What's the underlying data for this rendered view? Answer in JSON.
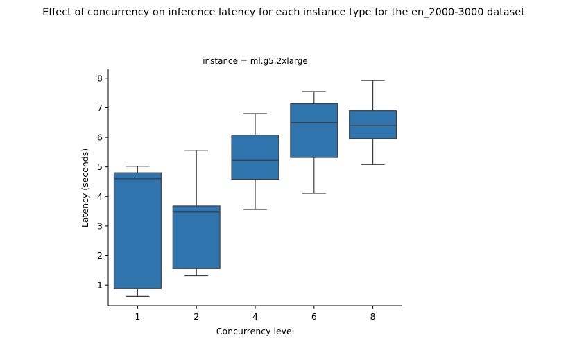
{
  "chart_data": {
    "type": "box",
    "title": "Effect of concurrency on inference latency for each instance type for the en_2000-3000 dataset",
    "subtitle": "instance = ml.g5.2xlarge",
    "xlabel": "Concurrency level",
    "ylabel": "Latency (seconds)",
    "ylim": [
      0.3,
      8.3
    ],
    "yticks": [
      1,
      2,
      3,
      4,
      5,
      6,
      7,
      8
    ],
    "grid": false,
    "legend": "none",
    "colors": {
      "box_fill": "#2f74ad",
      "line": "#3d3d3d",
      "axis": "#000000"
    },
    "categories": [
      "1",
      "2",
      "4",
      "6",
      "8"
    ],
    "boxes": [
      {
        "category": "1",
        "whisker_low": 0.62,
        "q1": 0.88,
        "median": 4.6,
        "q3": 4.8,
        "whisker_high": 5.02
      },
      {
        "category": "2",
        "whisker_low": 1.32,
        "q1": 1.56,
        "median": 3.47,
        "q3": 3.68,
        "whisker_high": 5.56
      },
      {
        "category": "4",
        "whisker_low": 3.56,
        "q1": 4.58,
        "median": 5.22,
        "q3": 6.08,
        "whisker_high": 6.8
      },
      {
        "category": "6",
        "whisker_low": 4.1,
        "q1": 5.32,
        "median": 6.5,
        "q3": 7.14,
        "whisker_high": 7.55
      },
      {
        "category": "8",
        "whisker_low": 5.08,
        "q1": 5.96,
        "median": 6.4,
        "q3": 6.9,
        "whisker_high": 7.92
      }
    ]
  }
}
